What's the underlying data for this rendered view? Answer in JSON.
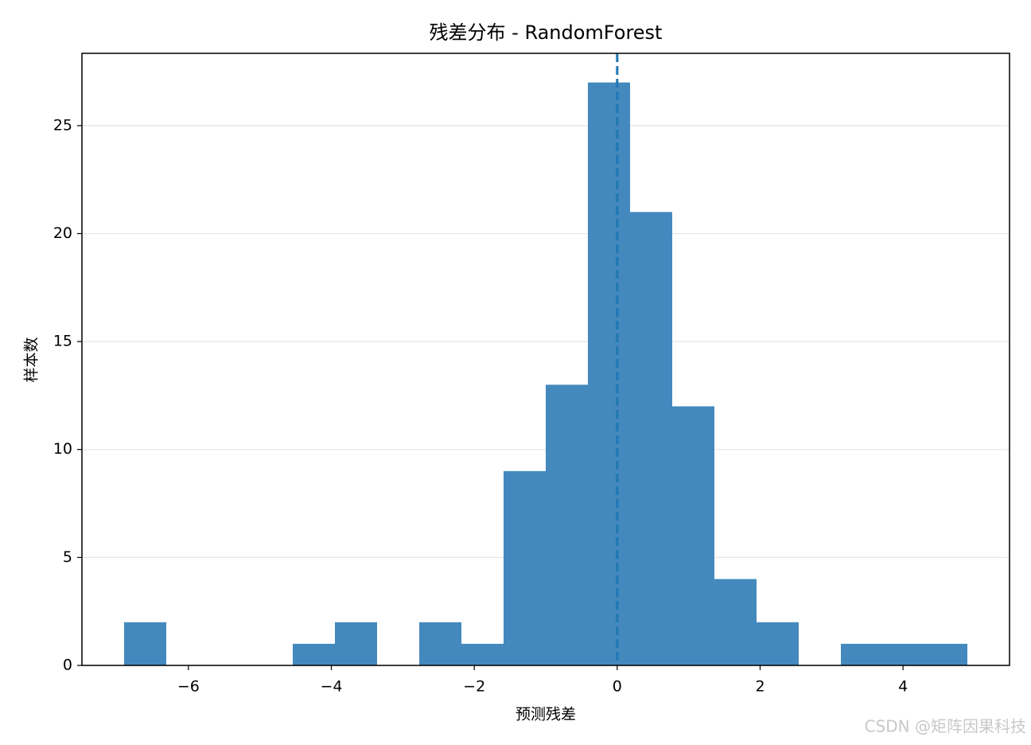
{
  "chart_data": {
    "type": "histogram",
    "title": "残差分布 - RandomForest",
    "x_label": "预测残差",
    "y_label": "样本数",
    "bins": [
      -6.9,
      -6.31,
      -5.72,
      -5.13,
      -4.54,
      -3.95,
      -3.36,
      -2.77,
      -2.18,
      -1.59,
      -1.0,
      -0.41,
      0.18,
      0.77,
      1.36,
      1.95,
      2.54,
      3.13,
      3.72,
      4.31,
      4.9
    ],
    "values": [
      2,
      0,
      0,
      0,
      1,
      2,
      0,
      2,
      1,
      9,
      13,
      27,
      21,
      12,
      4,
      2,
      0,
      1,
      1,
      1
    ],
    "color": "#4389be",
    "vline": 0,
    "vline_color": "#1f77b4",
    "xlim": [
      -7.49,
      5.49
    ],
    "xticks": [
      {
        "value": -6,
        "label": "−6"
      },
      {
        "value": -4,
        "label": "−4"
      },
      {
        "value": -2,
        "label": "−2"
      },
      0,
      2,
      4
    ],
    "ylim": [
      0,
      28.35
    ],
    "yticks": [
      0,
      5,
      10,
      15,
      20,
      25
    ],
    "grid": true,
    "watermark": "CSDN @矩阵因果科技"
  }
}
